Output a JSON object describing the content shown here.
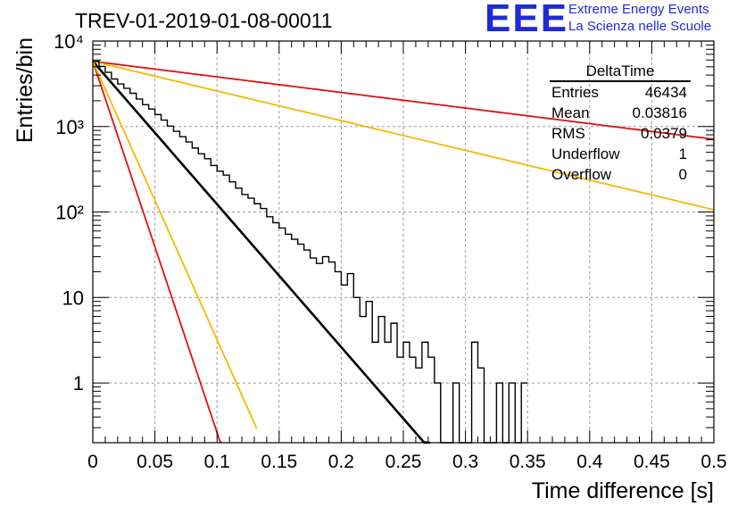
{
  "title": "TREV-01-2019-01-08-00011",
  "brand": {
    "logo_text": "EEE",
    "line1": "Extreme Energy Events",
    "line2": "La Scienza nelle Scuole",
    "color": "#1f2bd6"
  },
  "stats": {
    "name": "DeltaTime",
    "rows": [
      {
        "label": "Entries",
        "value": "46434"
      },
      {
        "label": "Mean",
        "value": "0.03816"
      },
      {
        "label": "RMS",
        "value": "0.0379"
      },
      {
        "label": "Underflow",
        "value": "1"
      },
      {
        "label": "Overflow",
        "value": "0"
      }
    ]
  },
  "chart_data": {
    "type": "line",
    "xlabel": "Time difference [s]",
    "ylabel": "Entries/bin",
    "xlim": [
      0,
      0.5
    ],
    "ylim": [
      0.2,
      10000
    ],
    "yscale": "log",
    "grid": true,
    "x_ticks": [
      "0",
      "0.05",
      "0.1",
      "0.15",
      "0.2",
      "0.25",
      "0.3",
      "0.35",
      "0.4",
      "0.45",
      "0.5"
    ],
    "y_ticks": [
      "1",
      "10",
      "10²",
      "10³",
      "10⁴"
    ],
    "histogram": {
      "color": "#000000",
      "bin_width": 0.005,
      "x_start": 0,
      "counts": [
        5800,
        5050,
        4300,
        3600,
        3150,
        2800,
        2450,
        2100,
        1800,
        1600,
        1380,
        1190,
        1010,
        880,
        760,
        660,
        560,
        480,
        420,
        350,
        300,
        270,
        225,
        190,
        160,
        145,
        125,
        110,
        88,
        75,
        65,
        55,
        48,
        42,
        36,
        29,
        25,
        21,
        18,
        15,
        13,
        11.5,
        10,
        8.5,
        7,
        6,
        5.2,
        4.5,
        4,
        3.6,
        3.1,
        2.7,
        2.3,
        2,
        1.8,
        1.6,
        1.4,
        1.2,
        1.05,
        0.9,
        0.8,
        0.7,
        0.6,
        0.52,
        0.45,
        0.4,
        0.35,
        0.3,
        0.26,
        0.22
      ],
      "overrides": {
        "37": 30,
        "38": 26,
        "39": 20,
        "40": 14,
        "41": 19,
        "42": 10,
        "43": 6,
        "44": 9,
        "45": 3,
        "46": 6,
        "47": 3,
        "48": 5,
        "49": 2,
        "50": 3,
        "51": 2,
        "52": 1.5,
        "53": 3,
        "54": 2,
        "55": 1,
        "56": 0.2,
        "57": 0.2,
        "58": 1,
        "59": 0.2,
        "60": 0.2,
        "61": 3,
        "62": 1.5,
        "63": 0.2,
        "64": 0.2,
        "65": 1,
        "66": 0.2,
        "67": 1,
        "68": 0.2,
        "69": 1
      }
    },
    "series": [
      {
        "x0": 0,
        "y0": 5800,
        "slope_per_s": -38.5,
        "x_end": 0.395,
        "color": "#000000"
      },
      {
        "x0": 0,
        "y0": 5800,
        "slope_per_s": -4.2,
        "x_end": 0.5,
        "color": "#dd1111"
      },
      {
        "x0": 0,
        "y0": 5800,
        "slope_per_s": -8.0,
        "x_end": 0.5,
        "color": "#f5b800"
      },
      {
        "x0": 0,
        "y0": 5800,
        "slope_per_s": -100.0,
        "x_end": 0.105,
        "color": "#dd1111"
      },
      {
        "x0": 0,
        "y0": 5800,
        "slope_per_s": -75.0,
        "x_end": 0.132,
        "color": "#f5b800"
      }
    ]
  }
}
